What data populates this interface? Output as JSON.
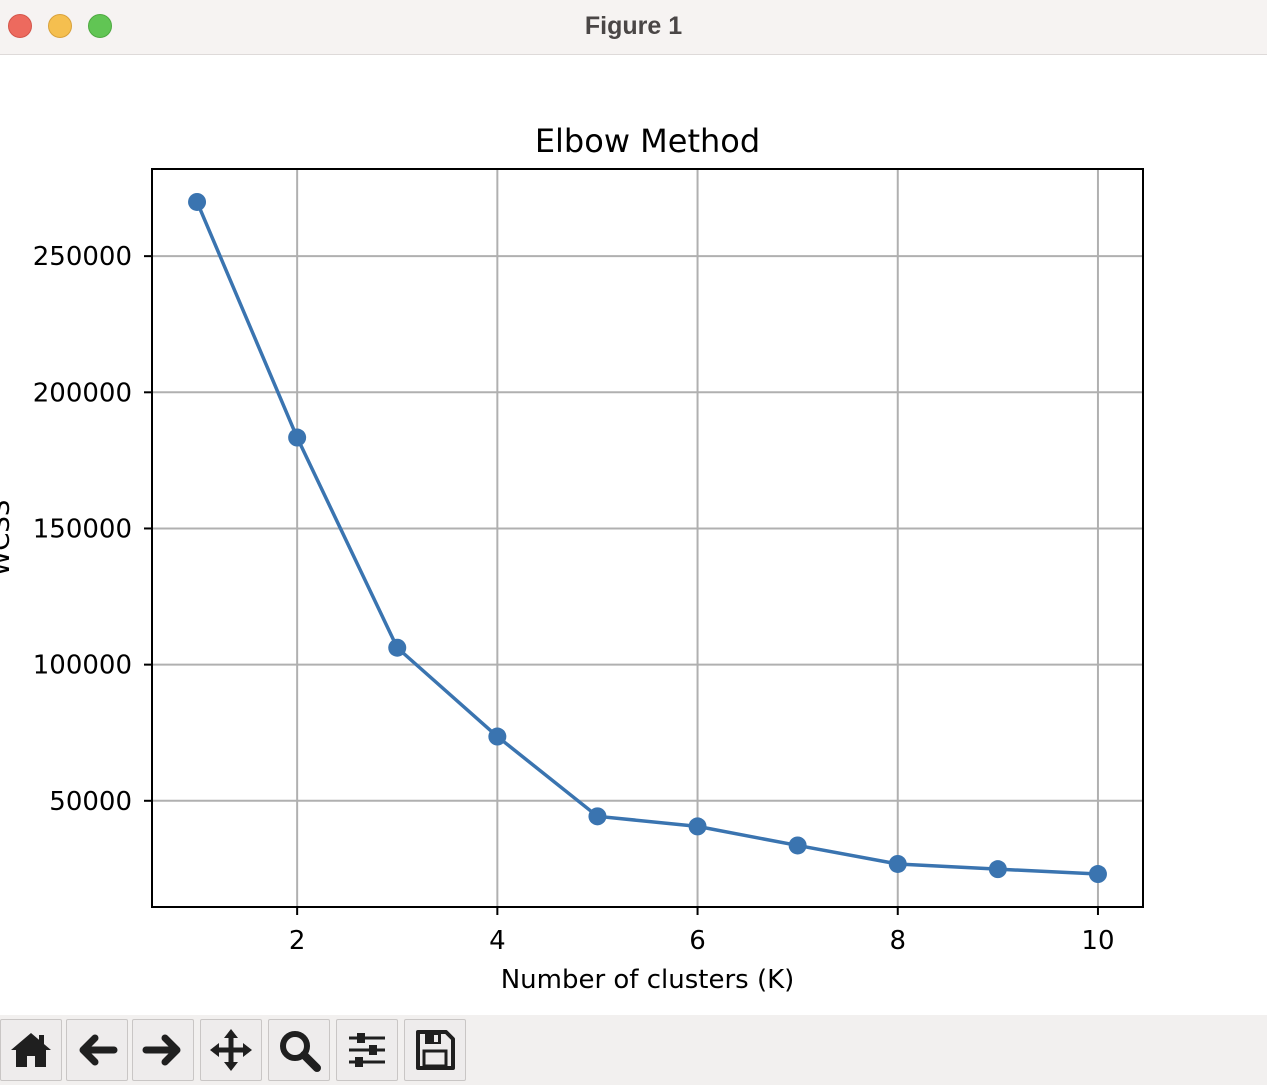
{
  "window": {
    "title": "Figure 1"
  },
  "toolbar": {
    "buttons": [
      {
        "name": "home-button",
        "icon": "home-icon"
      },
      {
        "name": "back-button",
        "icon": "arrow-left-icon"
      },
      {
        "name": "forward-button",
        "icon": "arrow-right-icon"
      },
      {
        "name": "pan-button",
        "icon": "move-arrows-icon"
      },
      {
        "name": "zoom-button",
        "icon": "magnifier-icon"
      },
      {
        "name": "configure-subplots-button",
        "icon": "sliders-icon"
      },
      {
        "name": "save-button",
        "icon": "floppy-disk-icon"
      }
    ]
  },
  "chart_data": {
    "type": "line",
    "title": "Elbow Method",
    "xlabel": "Number of clusters (K)",
    "ylabel": "WCSS",
    "x": [
      1,
      2,
      3,
      4,
      5,
      6,
      7,
      8,
      9,
      10
    ],
    "series": [
      {
        "values": [
          269900,
          183400,
          106200,
          73600,
          44300,
          40600,
          33600,
          26800,
          24900,
          23100
        ],
        "color": "#3a74b0",
        "marker": "circle"
      }
    ],
    "xticks": [
      2,
      4,
      6,
      8,
      10
    ],
    "xtick_labels": [
      "2",
      "4",
      "6",
      "8",
      "10"
    ],
    "yticks": [
      50000,
      100000,
      150000,
      200000,
      250000
    ],
    "ytick_labels": [
      "50000",
      "100000",
      "150000",
      "200000",
      "250000"
    ],
    "xlim": [
      0.55,
      10.45
    ],
    "ylim": [
      11000,
      282000
    ],
    "grid": true
  }
}
